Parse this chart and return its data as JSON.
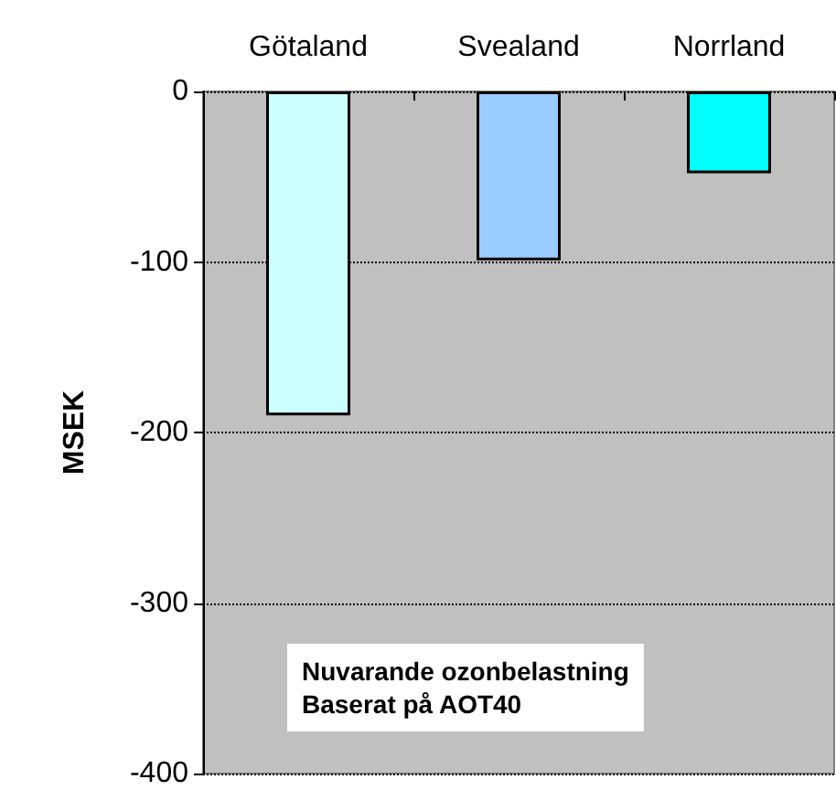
{
  "chart_data": {
    "type": "bar",
    "categories": [
      "Götaland",
      "Svealand",
      "Norrland"
    ],
    "values": [
      -190,
      -99,
      -48
    ],
    "colors": [
      "#ccffff",
      "#99ccff",
      "#00ffff"
    ],
    "ylabel": "MSEK",
    "ylim": [
      -400,
      0
    ],
    "yticks": [
      -400,
      -300,
      -200,
      -100,
      0
    ],
    "grid": "y",
    "annotations": [
      "Nuvarande ozonbelastning\nBaserat på AOT40"
    ]
  }
}
